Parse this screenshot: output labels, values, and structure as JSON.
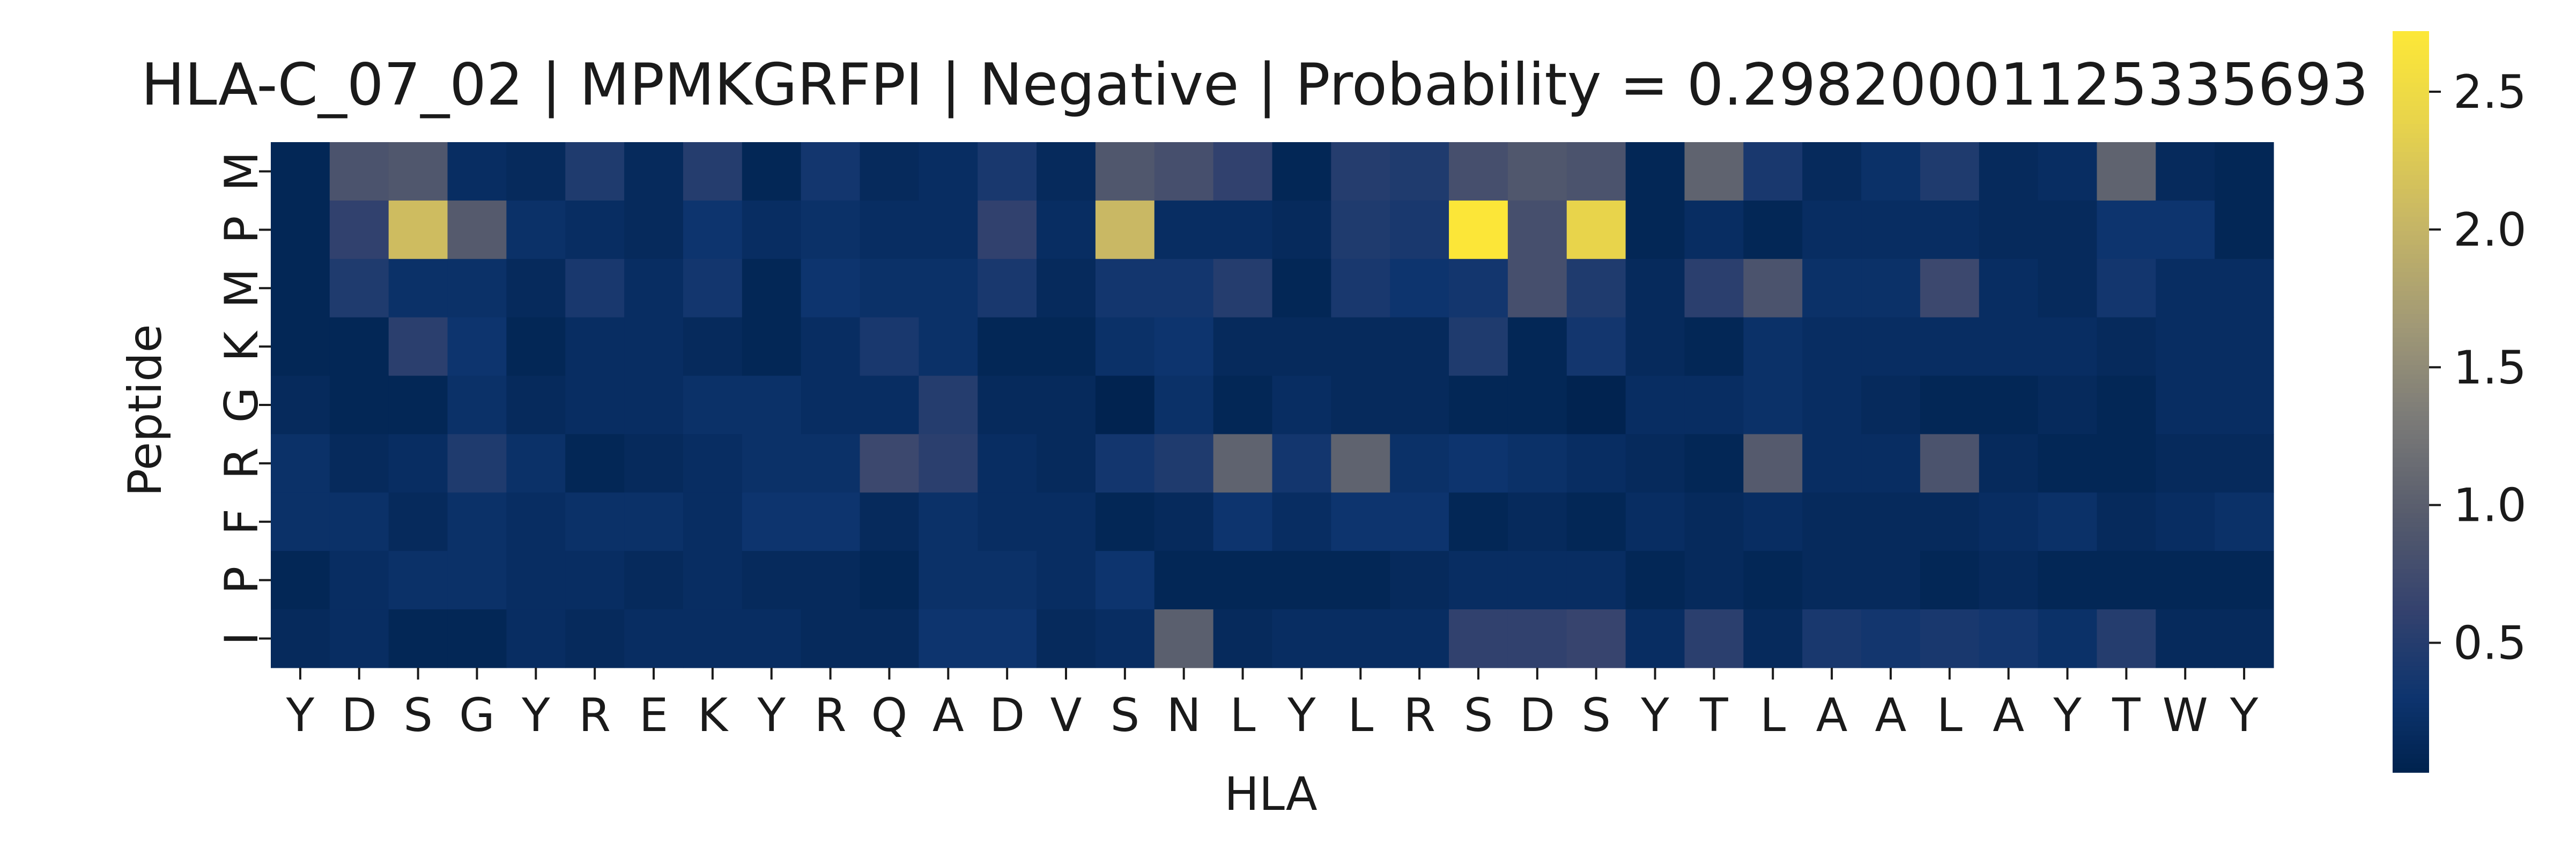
{
  "chart_data": {
    "type": "heatmap",
    "title": "HLA-C_07_02 | MPMKGRFPI | Negative | Probability = 0.29820001125335693",
    "xlabel": "HLA",
    "ylabel": "Peptide",
    "x_categories": [
      "Y",
      "D",
      "S",
      "G",
      "Y",
      "R",
      "E",
      "K",
      "Y",
      "R",
      "Q",
      "A",
      "D",
      "V",
      "S",
      "N",
      "L",
      "Y",
      "L",
      "R",
      "S",
      "D",
      "S",
      "Y",
      "T",
      "L",
      "A",
      "A",
      "L",
      "A",
      "Y",
      "T",
      "W",
      "Y"
    ],
    "y_categories": [
      "M",
      "P",
      "M",
      "K",
      "G",
      "R",
      "F",
      "P",
      "I"
    ],
    "values": [
      [
        0.1,
        0.85,
        0.9,
        0.2,
        0.15,
        0.45,
        0.15,
        0.5,
        0.1,
        0.35,
        0.15,
        0.2,
        0.4,
        0.15,
        0.9,
        0.8,
        0.6,
        0.1,
        0.5,
        0.45,
        0.8,
        0.9,
        0.85,
        0.1,
        1.05,
        0.4,
        0.15,
        0.25,
        0.45,
        0.15,
        0.2,
        1.05,
        0.15,
        0.1
      ],
      [
        0.1,
        0.6,
        2.1,
        0.95,
        0.25,
        0.2,
        0.15,
        0.3,
        0.2,
        0.25,
        0.2,
        0.2,
        0.6,
        0.2,
        2.05,
        0.2,
        0.2,
        0.15,
        0.45,
        0.4,
        2.7,
        0.8,
        2.4,
        0.1,
        0.2,
        0.1,
        0.2,
        0.2,
        0.2,
        0.15,
        0.15,
        0.3,
        0.3,
        0.1
      ],
      [
        0.1,
        0.45,
        0.25,
        0.25,
        0.15,
        0.4,
        0.2,
        0.35,
        0.1,
        0.3,
        0.25,
        0.25,
        0.4,
        0.15,
        0.35,
        0.35,
        0.5,
        0.1,
        0.4,
        0.3,
        0.35,
        0.8,
        0.45,
        0.15,
        0.55,
        0.85,
        0.25,
        0.25,
        0.7,
        0.2,
        0.15,
        0.35,
        0.2,
        0.2
      ],
      [
        0.1,
        0.1,
        0.55,
        0.3,
        0.1,
        0.2,
        0.2,
        0.15,
        0.1,
        0.2,
        0.4,
        0.25,
        0.1,
        0.1,
        0.25,
        0.3,
        0.15,
        0.15,
        0.15,
        0.15,
        0.45,
        0.1,
        0.35,
        0.15,
        0.1,
        0.25,
        0.2,
        0.2,
        0.2,
        0.2,
        0.2,
        0.15,
        0.2,
        0.2
      ],
      [
        0.15,
        0.1,
        0.1,
        0.25,
        0.15,
        0.2,
        0.2,
        0.25,
        0.25,
        0.2,
        0.2,
        0.5,
        0.15,
        0.15,
        0.05,
        0.25,
        0.1,
        0.2,
        0.15,
        0.15,
        0.1,
        0.1,
        0.05,
        0.2,
        0.2,
        0.25,
        0.2,
        0.15,
        0.1,
        0.1,
        0.15,
        0.1,
        0.2,
        0.2
      ],
      [
        0.25,
        0.15,
        0.2,
        0.45,
        0.25,
        0.1,
        0.15,
        0.2,
        0.25,
        0.25,
        0.7,
        0.55,
        0.2,
        0.15,
        0.35,
        0.45,
        1.05,
        0.35,
        1.05,
        0.25,
        0.3,
        0.25,
        0.2,
        0.15,
        0.1,
        0.95,
        0.2,
        0.2,
        0.85,
        0.15,
        0.1,
        0.1,
        0.15,
        0.15
      ],
      [
        0.25,
        0.25,
        0.15,
        0.25,
        0.2,
        0.25,
        0.25,
        0.2,
        0.3,
        0.3,
        0.15,
        0.25,
        0.2,
        0.2,
        0.1,
        0.15,
        0.3,
        0.2,
        0.3,
        0.3,
        0.1,
        0.15,
        0.1,
        0.2,
        0.15,
        0.2,
        0.15,
        0.15,
        0.15,
        0.2,
        0.25,
        0.15,
        0.2,
        0.25
      ],
      [
        0.1,
        0.2,
        0.25,
        0.25,
        0.2,
        0.2,
        0.15,
        0.2,
        0.15,
        0.15,
        0.1,
        0.25,
        0.25,
        0.2,
        0.3,
        0.1,
        0.1,
        0.1,
        0.1,
        0.15,
        0.2,
        0.2,
        0.2,
        0.1,
        0.15,
        0.1,
        0.15,
        0.15,
        0.1,
        0.15,
        0.1,
        0.1,
        0.1,
        0.1
      ],
      [
        0.15,
        0.2,
        0.1,
        0.1,
        0.2,
        0.15,
        0.2,
        0.2,
        0.2,
        0.15,
        0.15,
        0.3,
        0.3,
        0.15,
        0.2,
        1.0,
        0.15,
        0.2,
        0.2,
        0.2,
        0.6,
        0.6,
        0.65,
        0.2,
        0.55,
        0.15,
        0.4,
        0.35,
        0.4,
        0.35,
        0.25,
        0.5,
        0.15,
        0.15
      ]
    ],
    "colormap": "cividis",
    "colorbar": {
      "vmin": 0.03,
      "vmax": 2.72,
      "ticks": [
        "0.5",
        "1.0",
        "1.5",
        "2.0",
        "2.5"
      ],
      "tick_values": [
        0.5,
        1.0,
        1.5,
        2.0,
        2.5
      ]
    },
    "grid": false,
    "legend": "colorbar-right"
  }
}
